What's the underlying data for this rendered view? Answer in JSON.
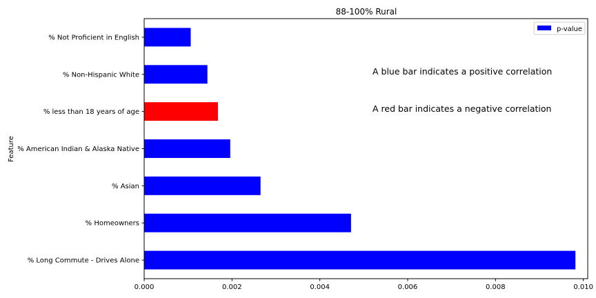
{
  "chart_data": {
    "type": "bar",
    "orientation": "horizontal",
    "title": "88-100% Rural",
    "xlabel": "",
    "ylabel": "Feature",
    "categories": [
      "% Long Commute - Drives Alone",
      "% Homeowners",
      "% Asian",
      "% American Indian & Alaska Native",
      "% less than 18 years of age",
      "% Non-Hispanic White",
      "% Not Proficient in English"
    ],
    "series": [
      {
        "name": "p-value",
        "values": [
          0.00982,
          0.00471,
          0.00265,
          0.00196,
          0.00168,
          0.00144,
          0.00106
        ],
        "colors": [
          "#0000ff",
          "#0000ff",
          "#0000ff",
          "#0000ff",
          "#ff0000",
          "#0000ff",
          "#0000ff"
        ]
      }
    ],
    "xlim": [
      0,
      0.0101
    ],
    "xticks": [
      0.0,
      0.002,
      0.004,
      0.006,
      0.008,
      0.01
    ],
    "xtick_labels": [
      "0.000",
      "0.002",
      "0.004",
      "0.006",
      "0.008",
      "0.010"
    ],
    "grid": false,
    "legend_position": "top-right",
    "legend_color": "#0000ff",
    "annotations": [
      "A blue bar indicates a positive correlation",
      "A red bar indicates a negative correlation"
    ]
  }
}
